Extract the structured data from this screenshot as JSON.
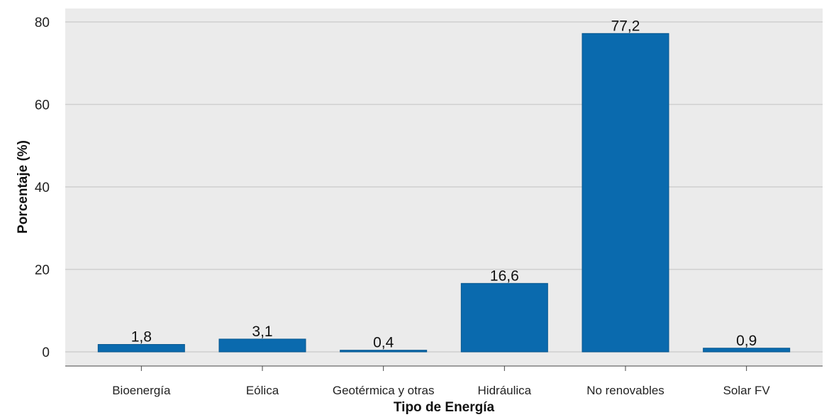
{
  "chart_data": {
    "type": "bar",
    "categories": [
      "Bioenergía",
      "Eólica",
      "Geotérmica y otras",
      "Hidráulica",
      "No renovables",
      "Solar FV"
    ],
    "values": [
      1.8,
      3.1,
      0.4,
      16.6,
      77.2,
      0.9
    ],
    "value_labels": [
      "1,8",
      "3,1",
      "0,4",
      "16,6",
      "77,2",
      "0,9"
    ],
    "title": "",
    "xlabel": "Tipo de Energía",
    "ylabel": "Porcentaje (%)",
    "ylim": [
      0,
      80
    ],
    "yticks": [
      0,
      20,
      40,
      60,
      80
    ],
    "ytick_labels": [
      "0",
      "20",
      "40",
      "60",
      "80"
    ],
    "grid": true,
    "legend": "none",
    "colors": {
      "bar": "#0a6aae",
      "panel": "#ebebeb",
      "grid": "#ffffff"
    }
  }
}
